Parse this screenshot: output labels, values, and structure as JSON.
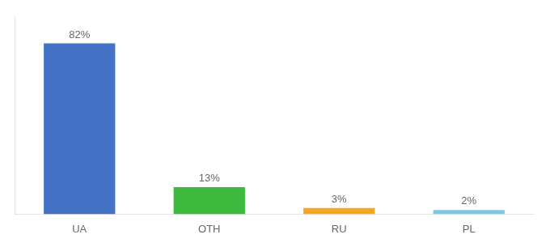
{
  "chart_data": {
    "type": "bar",
    "categories": [
      "UA",
      "OTH",
      "RU",
      "PL"
    ],
    "values": [
      82,
      13,
      3,
      2
    ],
    "value_labels": [
      "82%",
      "13%",
      "3%",
      "2%"
    ],
    "colors": [
      "#4472c4",
      "#3dba3d",
      "#f5a623",
      "#7ec8e3"
    ],
    "ylim": [
      0,
      95
    ],
    "grid": false,
    "data_labels": true,
    "tick_labels": "x"
  }
}
